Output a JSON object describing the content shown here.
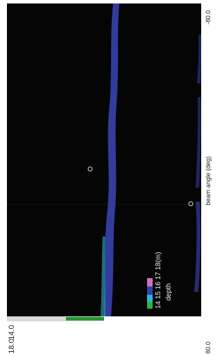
{
  "beam_axis": {
    "label": "beam angle (deg)",
    "start": "-80.0",
    "end": "80.0"
  },
  "depth_readout": {
    "upper": "14.0",
    "lower": "18.0"
  },
  "legend": {
    "scale": "14 15 16 17 18(m)",
    "title": "depth"
  }
}
